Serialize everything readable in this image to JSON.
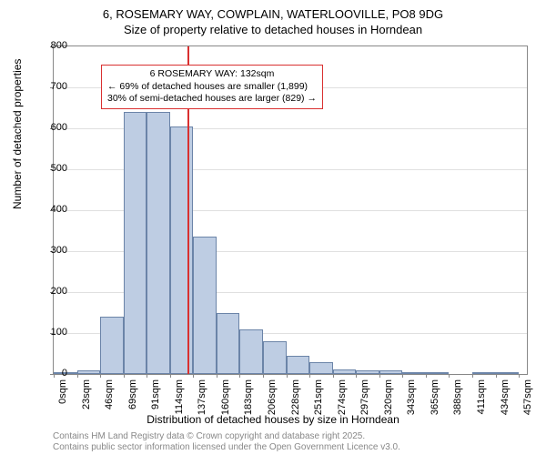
{
  "title_line1": "6, ROSEMARY WAY, COWPLAIN, WATERLOOVILLE, PO8 9DG",
  "title_line2": "Size of property relative to detached houses in Horndean",
  "y_axis_label": "Number of detached properties",
  "x_axis_label": "Distribution of detached houses by size in Horndean",
  "chart": {
    "type": "histogram",
    "ylim": [
      0,
      800
    ],
    "ytick_step": 100,
    "x_tick_labels": [
      "0sqm",
      "23sqm",
      "46sqm",
      "69sqm",
      "91sqm",
      "114sqm",
      "137sqm",
      "160sqm",
      "183sqm",
      "206sqm",
      "228sqm",
      "251sqm",
      "274sqm",
      "297sqm",
      "320sqm",
      "343sqm",
      "365sqm",
      "388sqm",
      "411sqm",
      "434sqm",
      "457sqm"
    ],
    "x_tick_step": 23,
    "x_max": 468,
    "values": [
      5,
      10,
      140,
      640,
      640,
      605,
      335,
      150,
      110,
      80,
      45,
      30,
      12,
      10,
      8,
      2,
      2,
      0,
      2,
      2,
      0
    ],
    "bar_fill": "#becde3",
    "bar_border": "#6b84a8",
    "grid_color": "#e0e0e0",
    "axis_color": "#888888",
    "marker_color": "#d93030",
    "marker_x": 132
  },
  "annotation": {
    "line1": "6 ROSEMARY WAY: 132sqm",
    "line2": "← 69% of detached houses are smaller (1,899)",
    "line3": "30% of semi-detached houses are larger (829) →"
  },
  "footer_line1": "Contains HM Land Registry data © Crown copyright and database right 2025.",
  "footer_line2": "Contains public sector information licensed under the Open Government Licence v3.0."
}
